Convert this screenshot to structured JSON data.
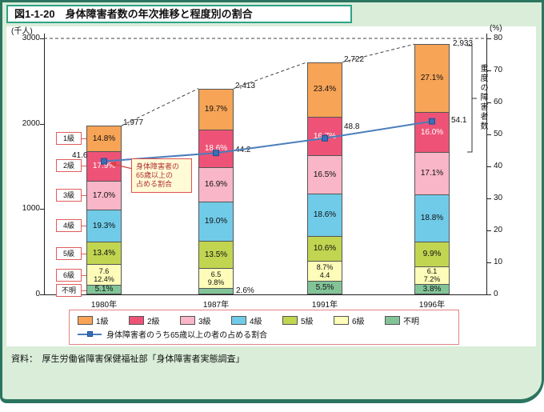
{
  "title": "図1-1-20　身体障害者数の年次推移と程度別の割合",
  "source": "資料：　厚生労働省障害保健福祉部「身体障害者実態調査」",
  "colors": {
    "background": "#D9EDD9",
    "frame": "#2B7560",
    "title_border": "#2FA186",
    "legend_border": "#E08484",
    "callout_red": "#E05C5C",
    "annotation_bg": "#FFFBD6",
    "annotation_text": "#B03030",
    "line": "#4A7EBB"
  },
  "chart_data": {
    "type": "bar",
    "subtype": "stacked-bars-with-percent-line",
    "title": "図1-1-20　身体障害者数の年次推移と程度別の割合",
    "categories": [
      "1980年",
      "1987年",
      "1991年",
      "1996年"
    ],
    "axis_left": {
      "unit": "(千人)",
      "min": 0,
      "max": 3000,
      "ticks": [
        0,
        1000,
        2000,
        3000
      ]
    },
    "axis_right": {
      "unit": "(%)",
      "min": 0,
      "max": 80,
      "ticks": [
        0,
        10,
        20,
        30,
        40,
        50,
        60,
        70,
        80
      ]
    },
    "grid": "dashed line at 3000 / 80% only, dashed connectors between bar tops",
    "legend_position": "bottom",
    "grades": [
      {
        "name": "1級",
        "color": "#F7A456"
      },
      {
        "name": "2級",
        "color": "#EE5377"
      },
      {
        "name": "3級",
        "color": "#F8B6C8"
      },
      {
        "name": "4級",
        "color": "#70CBE8"
      },
      {
        "name": "5級",
        "color": "#C1D550"
      },
      {
        "name": "6級",
        "color": "#FDFCB8"
      },
      {
        "name": "不明",
        "color": "#82C498"
      }
    ],
    "bars": [
      {
        "category": "1980年",
        "total": 1977,
        "total_label": "1,977",
        "segments": [
          {
            "grade": "1級",
            "pct": 14.8,
            "labels": [
              "14.8%"
            ]
          },
          {
            "grade": "2級",
            "pct": 17.9,
            "labels": [
              "17.9%"
            ],
            "text_color": "#ffffff"
          },
          {
            "grade": "3級",
            "pct": 17.0,
            "labels": [
              "17.0%"
            ]
          },
          {
            "grade": "4級",
            "pct": 19.3,
            "labels": [
              "19.3%"
            ]
          },
          {
            "grade": "5級",
            "pct": 13.4,
            "labels": [
              "13.4%"
            ]
          },
          {
            "grade": "6級",
            "pct": 12.4,
            "labels": [
              "7.6",
              "12.4%"
            ]
          },
          {
            "grade": "不明",
            "pct": 5.1,
            "labels": [
              "5.1%"
            ]
          }
        ]
      },
      {
        "category": "1987年",
        "total": 2413,
        "total_label": "2,413",
        "segments": [
          {
            "grade": "1級",
            "pct": 19.7,
            "labels": [
              "19.7%"
            ]
          },
          {
            "grade": "2級",
            "pct": 18.6,
            "labels": [
              "18.6%"
            ],
            "text_color": "#ffffff"
          },
          {
            "grade": "3級",
            "pct": 16.9,
            "labels": [
              "16.9%"
            ]
          },
          {
            "grade": "4級",
            "pct": 19.0,
            "labels": [
              "19.0%"
            ]
          },
          {
            "grade": "5級",
            "pct": 13.5,
            "labels": [
              "13.5%"
            ]
          },
          {
            "grade": "6級",
            "pct": 9.8,
            "labels": [
              "6.5",
              "9.8%"
            ]
          },
          {
            "grade": "不明",
            "pct": 2.6,
            "labels": [
              "2.6%"
            ],
            "label_outside": true
          }
        ]
      },
      {
        "category": "1991年",
        "total": 2722,
        "total_label": "2,722",
        "segments": [
          {
            "grade": "1級",
            "pct": 23.4,
            "labels": [
              "23.4%"
            ]
          },
          {
            "grade": "2級",
            "pct": 16.7,
            "labels": [
              "16.7%"
            ],
            "text_color": "#ffffff"
          },
          {
            "grade": "3級",
            "pct": 16.5,
            "labels": [
              "16.5%"
            ]
          },
          {
            "grade": "4級",
            "pct": 18.6,
            "labels": [
              "18.6%"
            ]
          },
          {
            "grade": "5級",
            "pct": 10.6,
            "labels": [
              "10.6%"
            ]
          },
          {
            "grade": "6級",
            "pct": 8.7,
            "labels": [
              "8.7%",
              "4.4"
            ]
          },
          {
            "grade": "不明",
            "pct": 5.5,
            "labels": [
              "5.5%"
            ]
          }
        ]
      },
      {
        "category": "1996年",
        "total": 2933,
        "total_label": "2,933",
        "segments": [
          {
            "grade": "1級",
            "pct": 27.1,
            "labels": [
              "27.1%"
            ]
          },
          {
            "grade": "2級",
            "pct": 16.0,
            "labels": [
              "16.0%"
            ],
            "text_color": "#ffffff"
          },
          {
            "grade": "3級",
            "pct": 17.1,
            "labels": [
              "17.1%"
            ]
          },
          {
            "grade": "4級",
            "pct": 18.8,
            "labels": [
              "18.8%"
            ]
          },
          {
            "grade": "5級",
            "pct": 9.9,
            "labels": [
              "9.9%"
            ]
          },
          {
            "grade": "6級",
            "pct": 7.2,
            "labels": [
              "6.1",
              "7.2%"
            ]
          },
          {
            "grade": "不明",
            "pct": 3.8,
            "labels": [
              "3.8%"
            ]
          }
        ]
      }
    ],
    "line": {
      "name": "身体障害者のうち65歳以上の者の占める割合",
      "values": [
        41.6,
        44.2,
        48.8,
        54.1
      ],
      "labels": [
        "41.6",
        "44.2",
        "48.8",
        "54.1"
      ],
      "color": "#4A7EBB",
      "marker_color": "#3B6EB5"
    },
    "severe_bracket_label": "重度の障害者数",
    "elderly_annotation": "身体障害者の\n65歳以上の\n占める割合"
  }
}
